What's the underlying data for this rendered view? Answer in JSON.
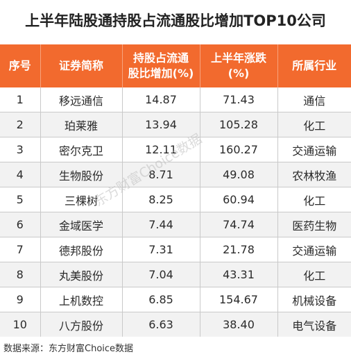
{
  "title": "上半年陆股通持股占流通股比增加TOP10公司",
  "header_color": "#f26a2e",
  "columns": [
    {
      "line1": "序号",
      "line2": ""
    },
    {
      "line1": "证券简称",
      "line2": ""
    },
    {
      "line1": "持股占流通",
      "line2": "股比增加(%)"
    },
    {
      "line1": "上半年涨跌",
      "line2": "(%)"
    },
    {
      "line1": "所属行业",
      "line2": ""
    }
  ],
  "rows": [
    {
      "no": "1",
      "name": "移远通信",
      "increase": "14.87",
      "change": "71.43",
      "industry": "通信"
    },
    {
      "no": "2",
      "name": "珀莱雅",
      "increase": "13.94",
      "change": "105.28",
      "industry": "化工"
    },
    {
      "no": "3",
      "name": "密尔克卫",
      "increase": "12.11",
      "change": "160.27",
      "industry": "交通运输"
    },
    {
      "no": "4",
      "name": "生物股份",
      "increase": "8.71",
      "change": "49.08",
      "industry": "农林牧渔"
    },
    {
      "no": "5",
      "name": "三棵树",
      "increase": "8.25",
      "change": "60.94",
      "industry": "化工"
    },
    {
      "no": "6",
      "name": "金域医学",
      "increase": "7.44",
      "change": "74.74",
      "industry": "医药生物"
    },
    {
      "no": "7",
      "name": "德邦股份",
      "increase": "7.31",
      "change": "21.78",
      "industry": "交通运输"
    },
    {
      "no": "8",
      "name": "丸美股份",
      "increase": "7.04",
      "change": "43.31",
      "industry": "化工"
    },
    {
      "no": "9",
      "name": "上机数控",
      "increase": "6.85",
      "change": "154.67",
      "industry": "机械设备"
    },
    {
      "no": "10",
      "name": "八方股份",
      "increase": "6.63",
      "change": "38.40",
      "industry": "电气设备"
    }
  ],
  "watermark": "东方财富Choice数据",
  "source": "数据来源：东方财富Choice数据"
}
